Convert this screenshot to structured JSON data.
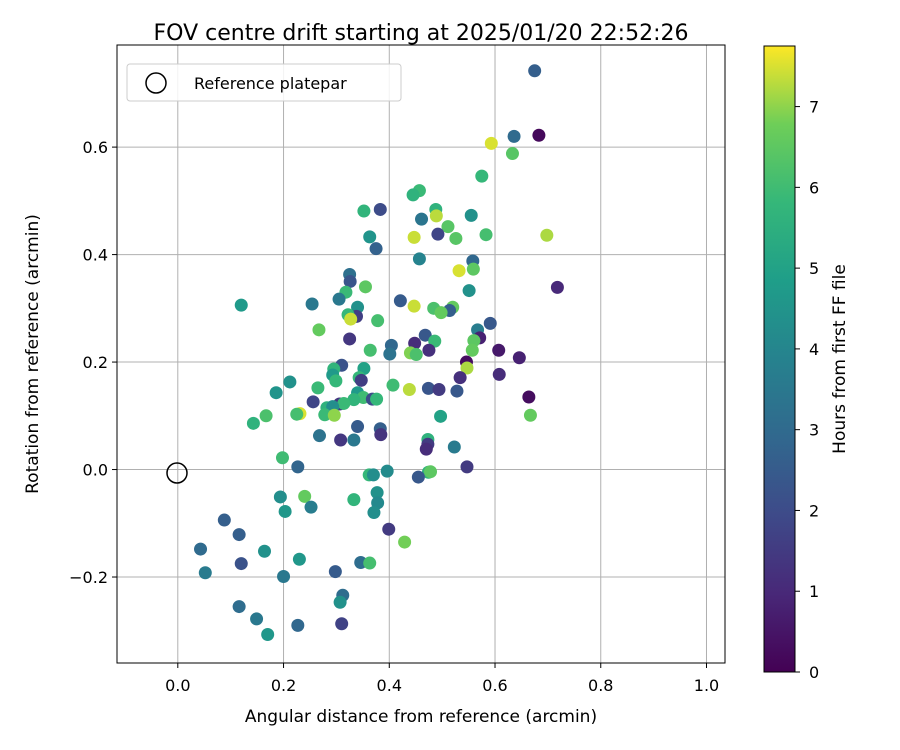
{
  "chart_data": {
    "type": "scatter",
    "title": "FOV centre drift starting at 2025/01/20 22:52:26",
    "xlabel": "Angular distance from reference (arcmin)",
    "ylabel": "Rotation from reference (arcmin)",
    "xlim": [
      -0.115,
      1.035
    ],
    "ylim": [
      -0.36,
      0.79
    ],
    "xticks": [
      0.0,
      0.2,
      0.4,
      0.6,
      0.8,
      1.0
    ],
    "xtick_labels": [
      "0.0",
      "0.2",
      "0.4",
      "0.6",
      "0.8",
      "1.0"
    ],
    "yticks": [
      -0.2,
      0.0,
      0.2,
      0.4,
      0.6
    ],
    "ytick_labels": [
      "−0.2",
      "0.0",
      "0.2",
      "0.4",
      "0.6"
    ],
    "grid": true,
    "legend": {
      "position": "top-left",
      "entries": [
        {
          "label": "Reference platepar",
          "marker": "open-circle",
          "x": 0.0,
          "y": 0.0
        }
      ]
    },
    "colorbar": {
      "label": "Hours from first FF file",
      "colormap": "viridis",
      "range": [
        0,
        7.75
      ],
      "ticks": [
        0,
        1,
        2,
        3,
        4,
        5,
        6,
        7
      ],
      "tick_labels": [
        "0",
        "1",
        "2",
        "3",
        "4",
        "5",
        "6",
        "7"
      ]
    },
    "reference_point": {
      "x": 0.0,
      "y": 0.0
    },
    "points": [
      [
        0.675,
        0.742,
        2.6
      ],
      [
        0.683,
        0.622,
        0.2
      ],
      [
        0.636,
        0.62,
        3.0
      ],
      [
        0.593,
        0.607,
        7.5
      ],
      [
        0.633,
        0.588,
        6.4
      ],
      [
        0.457,
        0.519,
        5.9
      ],
      [
        0.445,
        0.511,
        5.6
      ],
      [
        0.575,
        0.546,
        5.8
      ],
      [
        0.352,
        0.481,
        5.7
      ],
      [
        0.383,
        0.484,
        2.0
      ],
      [
        0.488,
        0.484,
        5.6
      ],
      [
        0.461,
        0.466,
        3.4
      ],
      [
        0.489,
        0.472,
        7.3
      ],
      [
        0.511,
        0.452,
        6.4
      ],
      [
        0.555,
        0.473,
        4.4
      ],
      [
        0.492,
        0.438,
        1.8
      ],
      [
        0.447,
        0.432,
        7.4
      ],
      [
        0.526,
        0.43,
        6.4
      ],
      [
        0.583,
        0.437,
        6.1
      ],
      [
        0.698,
        0.436,
        7.2
      ],
      [
        0.363,
        0.433,
        4.5
      ],
      [
        0.375,
        0.411,
        2.7
      ],
      [
        0.457,
        0.392,
        3.9
      ],
      [
        0.558,
        0.388,
        2.9
      ],
      [
        0.532,
        0.37,
        7.5
      ],
      [
        0.559,
        0.373,
        6.5
      ],
      [
        0.325,
        0.363,
        3.2
      ],
      [
        0.326,
        0.35,
        2.3
      ],
      [
        0.718,
        0.339,
        1.0
      ],
      [
        0.355,
        0.34,
        6.5
      ],
      [
        0.551,
        0.333,
        4.4
      ],
      [
        0.318,
        0.33,
        5.9
      ],
      [
        0.305,
        0.317,
        3.5
      ],
      [
        0.421,
        0.314,
        2.5
      ],
      [
        0.254,
        0.308,
        3.5
      ],
      [
        0.12,
        0.306,
        4.7
      ],
      [
        0.34,
        0.302,
        4.4
      ],
      [
        0.447,
        0.304,
        7.4
      ],
      [
        0.52,
        0.302,
        6.6
      ],
      [
        0.514,
        0.296,
        2.6
      ],
      [
        0.484,
        0.3,
        6.2
      ],
      [
        0.498,
        0.292,
        6.6
      ],
      [
        0.338,
        0.285,
        1.6
      ],
      [
        0.322,
        0.288,
        5.8
      ],
      [
        0.327,
        0.28,
        7.4
      ],
      [
        0.378,
        0.277,
        6.1
      ],
      [
        0.591,
        0.272,
        2.4
      ],
      [
        0.267,
        0.26,
        6.6
      ],
      [
        0.567,
        0.26,
        3.7
      ],
      [
        0.325,
        0.243,
        1.4
      ],
      [
        0.468,
        0.25,
        2.4
      ],
      [
        0.571,
        0.245,
        0.8
      ],
      [
        0.486,
        0.239,
        5.9
      ],
      [
        0.56,
        0.24,
        6.5
      ],
      [
        0.404,
        0.231,
        2.9
      ],
      [
        0.448,
        0.235,
        1.1
      ],
      [
        0.475,
        0.222,
        1.2
      ],
      [
        0.364,
        0.222,
        6.1
      ],
      [
        0.44,
        0.217,
        6.9
      ],
      [
        0.451,
        0.214,
        6.2
      ],
      [
        0.401,
        0.215,
        3.3
      ],
      [
        0.607,
        0.222,
        0.6
      ],
      [
        0.557,
        0.222,
        6.6
      ],
      [
        0.646,
        0.208,
        0.8
      ],
      [
        0.546,
        0.2,
        0.3
      ],
      [
        0.547,
        0.189,
        7.2
      ],
      [
        0.31,
        0.194,
        2.2
      ],
      [
        0.295,
        0.187,
        5.7
      ],
      [
        0.352,
        0.188,
        5.0
      ],
      [
        0.293,
        0.176,
        4.7
      ],
      [
        0.343,
        0.171,
        5.8
      ],
      [
        0.608,
        0.177,
        1.1
      ],
      [
        0.534,
        0.171,
        1.2
      ],
      [
        0.299,
        0.165,
        5.8
      ],
      [
        0.347,
        0.166,
        1.6
      ],
      [
        0.212,
        0.163,
        4.4
      ],
      [
        0.407,
        0.157,
        6.0
      ],
      [
        0.265,
        0.152,
        5.9
      ],
      [
        0.474,
        0.151,
        2.3
      ],
      [
        0.438,
        0.149,
        7.3
      ],
      [
        0.494,
        0.149,
        1.5
      ],
      [
        0.528,
        0.146,
        2.4
      ],
      [
        0.186,
        0.143,
        4.5
      ],
      [
        0.34,
        0.143,
        4.7
      ],
      [
        0.664,
        0.135,
        0.3
      ],
      [
        0.306,
        0.122,
        1.4
      ],
      [
        0.351,
        0.134,
        6.0
      ],
      [
        0.368,
        0.131,
        2.0
      ],
      [
        0.376,
        0.131,
        5.8
      ],
      [
        0.333,
        0.13,
        5.7
      ],
      [
        0.314,
        0.123,
        5.9
      ],
      [
        0.256,
        0.126,
        1.8
      ],
      [
        0.282,
        0.115,
        5.6
      ],
      [
        0.293,
        0.117,
        4.3
      ],
      [
        0.278,
        0.102,
        5.9
      ],
      [
        0.231,
        0.104,
        7.5
      ],
      [
        0.167,
        0.1,
        6.2
      ],
      [
        0.296,
        0.101,
        7.0
      ],
      [
        0.497,
        0.099,
        5.0
      ],
      [
        0.667,
        0.101,
        6.6
      ],
      [
        0.225,
        0.103,
        6.1
      ],
      [
        0.143,
        0.086,
        5.6
      ],
      [
        0.34,
        0.08,
        2.5
      ],
      [
        0.383,
        0.076,
        2.6
      ],
      [
        0.384,
        0.065,
        1.3
      ],
      [
        0.268,
        0.063,
        3.3
      ],
      [
        0.308,
        0.055,
        1.4
      ],
      [
        0.333,
        0.055,
        3.5
      ],
      [
        0.473,
        0.056,
        5.6
      ],
      [
        0.473,
        0.047,
        1.5
      ],
      [
        0.523,
        0.042,
        3.6
      ],
      [
        0.47,
        0.038,
        1.1
      ],
      [
        0.198,
        0.022,
        6.0
      ],
      [
        0.227,
        0.005,
        2.8
      ],
      [
        0.547,
        0.005,
        1.5
      ],
      [
        0.362,
        -0.01,
        5.8
      ],
      [
        0.396,
        -0.003,
        4.2
      ],
      [
        0.37,
        -0.01,
        4.3
      ],
      [
        0.474,
        -0.005,
        5.6
      ],
      [
        0.478,
        -0.004,
        6.5
      ],
      [
        0.455,
        -0.014,
        2.4
      ],
      [
        0.377,
        -0.043,
        4.4
      ],
      [
        0.194,
        -0.051,
        4.3
      ],
      [
        0.24,
        -0.05,
        6.6
      ],
      [
        0.333,
        -0.056,
        5.7
      ],
      [
        0.378,
        -0.062,
        4.1
      ],
      [
        0.252,
        -0.07,
        3.7
      ],
      [
        0.203,
        -0.078,
        4.6
      ],
      [
        0.371,
        -0.08,
        4.3
      ],
      [
        0.088,
        -0.094,
        2.6
      ],
      [
        0.399,
        -0.111,
        1.5
      ],
      [
        0.116,
        -0.121,
        2.6
      ],
      [
        0.429,
        -0.135,
        6.8
      ],
      [
        0.043,
        -0.148,
        3.0
      ],
      [
        0.164,
        -0.152,
        4.4
      ],
      [
        0.23,
        -0.167,
        4.6
      ],
      [
        0.346,
        -0.173,
        3.1
      ],
      [
        0.363,
        -0.174,
        6.1
      ],
      [
        0.12,
        -0.175,
        2.2
      ],
      [
        0.052,
        -0.192,
        3.6
      ],
      [
        0.298,
        -0.19,
        2.5
      ],
      [
        0.2,
        -0.199,
        3.5
      ],
      [
        0.312,
        -0.234,
        3.1
      ],
      [
        0.307,
        -0.247,
        4.4
      ],
      [
        0.116,
        -0.255,
        3.1
      ],
      [
        0.149,
        -0.278,
        3.5
      ],
      [
        0.31,
        -0.287,
        1.7
      ],
      [
        0.227,
        -0.29,
        2.9
      ],
      [
        0.17,
        -0.307,
        4.6
      ]
    ]
  }
}
